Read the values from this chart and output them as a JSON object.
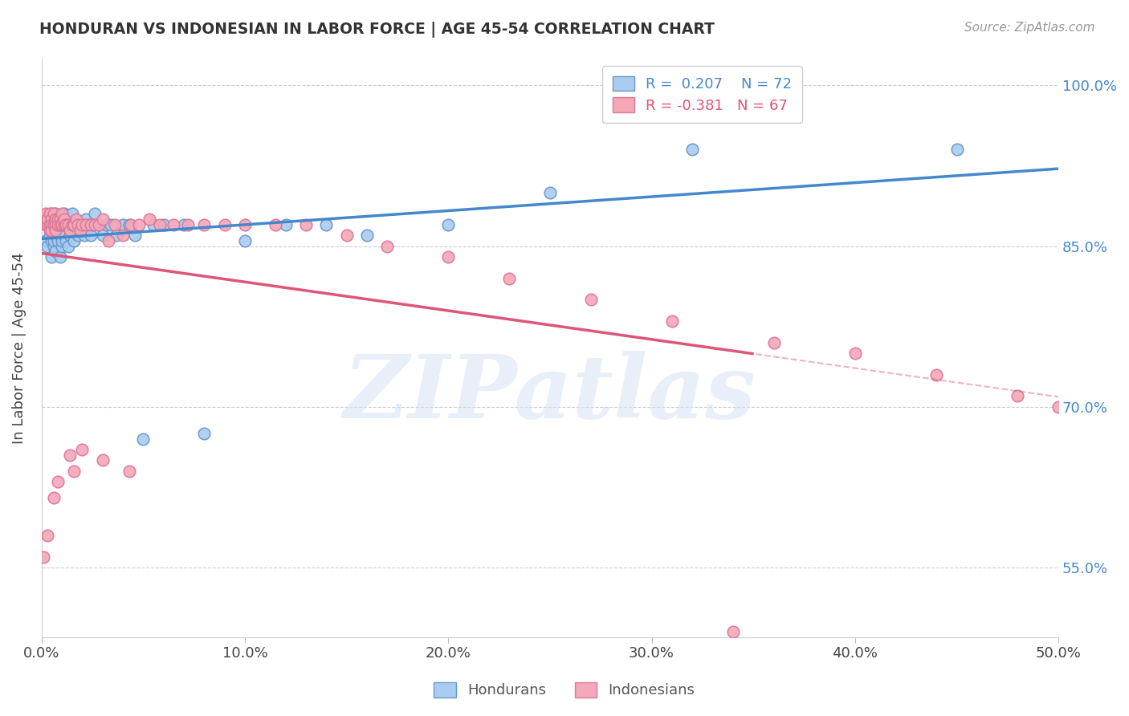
{
  "title": "HONDURAN VS INDONESIAN IN LABOR FORCE | AGE 45-54 CORRELATION CHART",
  "source": "Source: ZipAtlas.com",
  "ylabel": "In Labor Force | Age 45-54",
  "xlim": [
    0.0,
    0.5
  ],
  "ylim": [
    0.485,
    1.025
  ],
  "xticks": [
    0.0,
    0.1,
    0.2,
    0.3,
    0.4,
    0.5
  ],
  "xticklabels": [
    "0.0%",
    "10.0%",
    "20.0%",
    "30.0%",
    "40.0%",
    "50.0%"
  ],
  "yticks": [
    0.55,
    0.7,
    0.85,
    1.0
  ],
  "yticklabels": [
    "55.0%",
    "70.0%",
    "85.0%",
    "100.0%"
  ],
  "honduran_color": "#aaccee",
  "indonesian_color": "#f4a8b8",
  "honduran_edge": "#6699cc",
  "indonesian_edge": "#dd7799",
  "line_blue": "#4488cc",
  "line_pink": "#dd5577",
  "grid_color": "#cccccc",
  "background": "#ffffff",
  "legend_R_blue": "R =  0.207",
  "legend_N_blue": "N = 72",
  "legend_R_pink": "R = -0.381",
  "legend_N_pink": "N = 67",
  "watermark": "ZIPatlas",
  "honduran_x": [
    0.002,
    0.003,
    0.003,
    0.004,
    0.004,
    0.004,
    0.005,
    0.005,
    0.005,
    0.005,
    0.006,
    0.006,
    0.006,
    0.006,
    0.007,
    0.007,
    0.007,
    0.007,
    0.008,
    0.008,
    0.008,
    0.008,
    0.009,
    0.009,
    0.009,
    0.01,
    0.01,
    0.01,
    0.011,
    0.011,
    0.011,
    0.012,
    0.012,
    0.013,
    0.013,
    0.014,
    0.014,
    0.015,
    0.015,
    0.016,
    0.017,
    0.018,
    0.018,
    0.019,
    0.02,
    0.021,
    0.022,
    0.023,
    0.024,
    0.025,
    0.026,
    0.028,
    0.03,
    0.032,
    0.034,
    0.037,
    0.04,
    0.043,
    0.046,
    0.05,
    0.055,
    0.06,
    0.07,
    0.08,
    0.1,
    0.12,
    0.14,
    0.16,
    0.2,
    0.25,
    0.32,
    0.45
  ],
  "honduran_y": [
    0.855,
    0.87,
    0.85,
    0.87,
    0.875,
    0.86,
    0.88,
    0.865,
    0.855,
    0.84,
    0.875,
    0.865,
    0.85,
    0.855,
    0.87,
    0.86,
    0.845,
    0.88,
    0.87,
    0.875,
    0.855,
    0.865,
    0.84,
    0.86,
    0.875,
    0.85,
    0.87,
    0.855,
    0.86,
    0.87,
    0.88,
    0.87,
    0.855,
    0.875,
    0.85,
    0.87,
    0.86,
    0.88,
    0.87,
    0.855,
    0.87,
    0.87,
    0.86,
    0.87,
    0.87,
    0.86,
    0.875,
    0.87,
    0.86,
    0.87,
    0.88,
    0.87,
    0.86,
    0.87,
    0.87,
    0.86,
    0.87,
    0.87,
    0.86,
    0.67,
    0.87,
    0.87,
    0.87,
    0.675,
    0.855,
    0.87,
    0.87,
    0.86,
    0.87,
    0.9,
    0.94,
    0.94
  ],
  "indonesian_x": [
    0.001,
    0.002,
    0.002,
    0.003,
    0.003,
    0.003,
    0.004,
    0.004,
    0.004,
    0.005,
    0.005,
    0.005,
    0.006,
    0.006,
    0.006,
    0.007,
    0.007,
    0.007,
    0.008,
    0.008,
    0.008,
    0.009,
    0.009,
    0.01,
    0.01,
    0.011,
    0.011,
    0.012,
    0.012,
    0.013,
    0.014,
    0.015,
    0.016,
    0.017,
    0.018,
    0.019,
    0.02,
    0.022,
    0.024,
    0.026,
    0.028,
    0.03,
    0.033,
    0.036,
    0.04,
    0.044,
    0.048,
    0.053,
    0.058,
    0.065,
    0.072,
    0.08,
    0.09,
    0.1,
    0.115,
    0.13,
    0.15,
    0.17,
    0.2,
    0.23,
    0.27,
    0.31,
    0.36,
    0.4,
    0.44,
    0.48,
    0.5
  ],
  "indonesian_y": [
    0.875,
    0.88,
    0.87,
    0.875,
    0.87,
    0.875,
    0.87,
    0.88,
    0.865,
    0.875,
    0.87,
    0.865,
    0.87,
    0.88,
    0.87,
    0.875,
    0.87,
    0.865,
    0.87,
    0.875,
    0.87,
    0.875,
    0.87,
    0.87,
    0.88,
    0.87,
    0.875,
    0.87,
    0.87,
    0.87,
    0.865,
    0.87,
    0.87,
    0.875,
    0.87,
    0.865,
    0.87,
    0.87,
    0.87,
    0.87,
    0.87,
    0.875,
    0.855,
    0.87,
    0.86,
    0.87,
    0.87,
    0.875,
    0.87,
    0.87,
    0.87,
    0.87,
    0.87,
    0.87,
    0.87,
    0.87,
    0.86,
    0.85,
    0.84,
    0.82,
    0.8,
    0.78,
    0.76,
    0.75,
    0.73,
    0.71,
    0.7
  ],
  "indonesian_outlier_x": [
    0.001,
    0.003,
    0.006,
    0.008,
    0.014,
    0.016,
    0.02,
    0.03,
    0.043,
    0.34
  ],
  "indonesian_outlier_y": [
    0.56,
    0.58,
    0.615,
    0.63,
    0.655,
    0.64,
    0.66,
    0.65,
    0.64,
    0.49
  ]
}
